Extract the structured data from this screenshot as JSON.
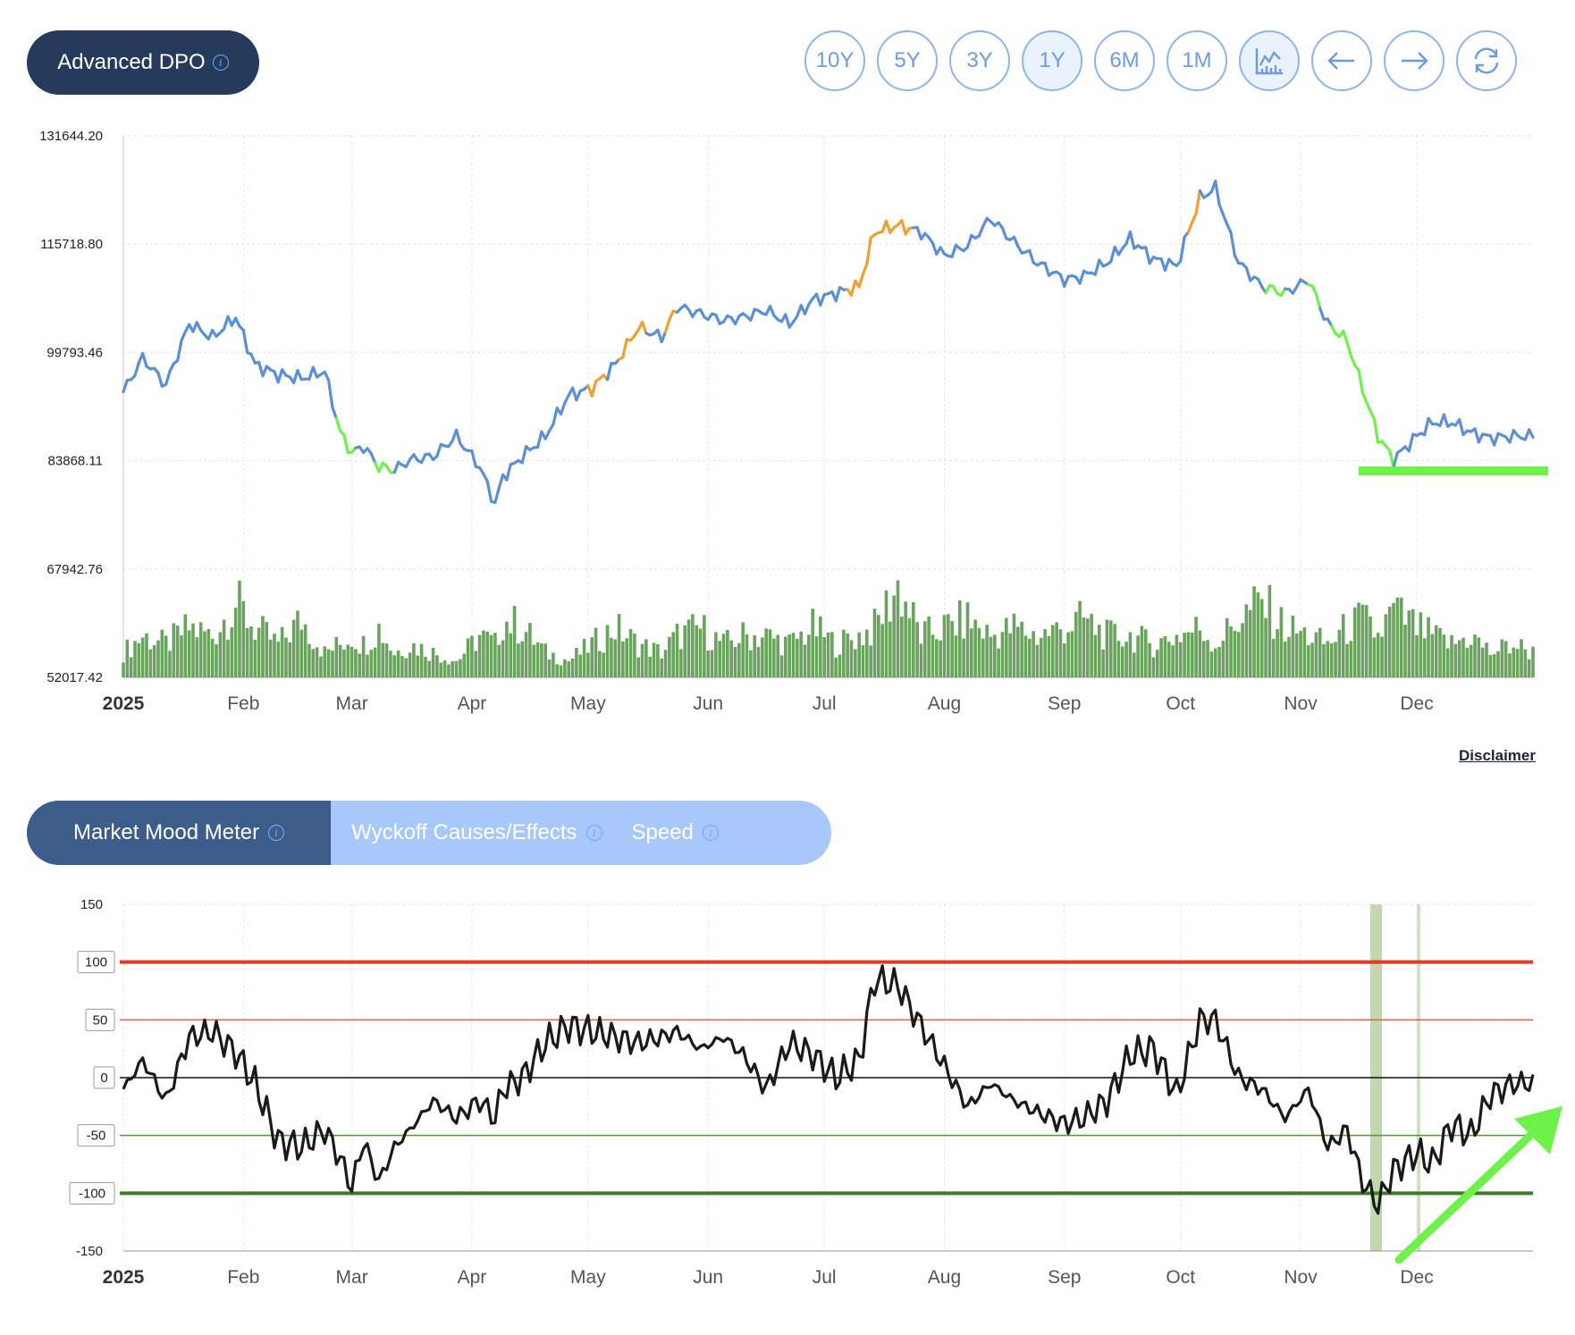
{
  "header": {
    "title": "Advanced DPO",
    "info_icon": "info-icon"
  },
  "toolbar": {
    "ranges": [
      "10Y",
      "5Y",
      "3Y",
      "1Y",
      "6M",
      "1M"
    ],
    "active_range": "1Y",
    "icons": [
      "chart-type-icon",
      "arrow-left-icon",
      "arrow-right-icon",
      "refresh-icon"
    ]
  },
  "disclaimer": "Disclaimer",
  "tabs": [
    {
      "label": "Market Mood Meter",
      "active": true
    },
    {
      "label": "Wyckoff Causes/Effects",
      "active": false
    },
    {
      "label": "Speed",
      "active": false
    }
  ],
  "colors": {
    "price_line": "#5b8fd8",
    "price_overbought": "#f0a030",
    "price_oversold": "#6ef24a",
    "volume_bars": "#6aa35e",
    "mood_line": "#1a1a1a",
    "level_100": "#e03a2b",
    "level_50": "#e05c50",
    "level_neg50": "#4f9a35",
    "level_neg100": "#3e7a2a",
    "highlight_band": "#b9d3a6",
    "arrow": "#6ef24a"
  },
  "chart_data": [
    {
      "type": "line",
      "name": "price",
      "y_ticks": [
        "131644.20",
        "115718.80",
        "99793.46",
        "83868.11",
        "67942.76",
        "52017.42"
      ],
      "ylim": [
        52017.42,
        131644.2
      ],
      "x_ticks": [
        "2025",
        "Feb",
        "Mar",
        "Apr",
        "May",
        "Jun",
        "Jul",
        "Aug",
        "Sep",
        "Oct",
        "Nov",
        "Dec"
      ],
      "x": [
        "2025-01-01",
        "2025-01-06",
        "2025-01-12",
        "2025-01-18",
        "2025-01-24",
        "2025-01-30",
        "2025-02-04",
        "2025-02-10",
        "2025-02-16",
        "2025-02-22",
        "2025-02-26",
        "2025-03-01",
        "2025-03-04",
        "2025-03-08",
        "2025-03-12",
        "2025-03-16",
        "2025-03-22",
        "2025-03-28",
        "2025-04-03",
        "2025-04-07",
        "2025-04-09",
        "2025-04-14",
        "2025-04-20",
        "2025-04-26",
        "2025-05-02",
        "2025-05-08",
        "2025-05-14",
        "2025-05-20",
        "2025-05-24",
        "2025-05-30",
        "2025-06-05",
        "2025-06-10",
        "2025-06-16",
        "2025-06-22",
        "2025-06-28",
        "2025-07-04",
        "2025-07-10",
        "2025-07-14",
        "2025-07-20",
        "2025-07-26",
        "2025-08-01",
        "2025-08-07",
        "2025-08-13",
        "2025-08-19",
        "2025-08-25",
        "2025-09-01",
        "2025-09-06",
        "2025-09-12",
        "2025-09-18",
        "2025-09-24",
        "2025-09-30",
        "2025-10-06",
        "2025-10-10",
        "2025-10-16",
        "2025-10-22",
        "2025-10-28",
        "2025-11-03",
        "2025-11-08",
        "2025-11-13",
        "2025-11-17",
        "2025-11-21",
        "2025-11-25",
        "2025-12-01",
        "2025-12-05",
        "2025-12-10",
        "2025-12-15",
        "2025-12-20",
        "2025-12-26",
        "2025-12-31"
      ],
      "y": [
        94000,
        99000,
        95000,
        104000,
        102000,
        105000,
        98000,
        96500,
        96000,
        97000,
        88000,
        85000,
        86000,
        83000,
        82500,
        84000,
        84500,
        87500,
        83000,
        77500,
        81500,
        84500,
        87500,
        93500,
        94500,
        98000,
        103500,
        102000,
        106500,
        105500,
        104500,
        105000,
        106000,
        104000,
        107500,
        108500,
        109500,
        117500,
        118500,
        117500,
        114000,
        115500,
        119500,
        116000,
        113000,
        110500,
        111000,
        113000,
        116500,
        113500,
        112500,
        122500,
        124000,
        113000,
        109500,
        108500,
        110500,
        104000,
        101500,
        94500,
        87500,
        84000,
        87500,
        89500,
        89500,
        88000,
        87200,
        87500,
        87500
      ],
      "segments_color": {
        "orange": [
          [
            "2025-05-02",
            "2025-05-06"
          ],
          [
            "2025-05-10",
            "2025-05-16"
          ],
          [
            "2025-05-22",
            "2025-05-24"
          ],
          [
            "2025-07-08",
            "2025-07-24"
          ],
          [
            "2025-10-04",
            "2025-10-06"
          ]
        ],
        "green": [
          [
            "2025-02-26",
            "2025-03-02"
          ],
          [
            "2025-03-08",
            "2025-03-12"
          ],
          [
            "2025-10-24",
            "2025-10-28"
          ],
          [
            "2025-11-04",
            "2025-11-06"
          ],
          [
            "2025-11-10",
            "2025-11-25"
          ]
        ]
      },
      "volume": [
        3,
        5,
        4,
        6,
        5,
        9,
        6,
        4,
        7,
        3,
        4,
        5,
        4,
        6,
        3,
        4,
        3,
        2,
        5,
        4,
        7,
        6,
        3,
        2,
        4,
        6,
        4,
        3,
        5,
        6,
        4,
        5,
        5,
        4,
        6,
        4,
        5,
        6,
        11,
        5,
        6,
        7,
        5,
        6,
        5,
        6,
        7,
        5,
        5,
        4,
        5,
        6,
        4,
        7,
        9,
        6,
        5,
        4,
        6,
        7,
        5,
        8,
        6,
        5,
        4,
        5,
        3,
        4,
        3
      ]
    },
    {
      "type": "line",
      "name": "mood",
      "y_ticks": [
        150,
        100,
        50,
        0,
        -50,
        -100,
        -150
      ],
      "ylim": [
        -150,
        150
      ],
      "levels": [
        100,
        50,
        0,
        -50,
        -100
      ],
      "x_ticks": [
        "2025",
        "Feb",
        "Mar",
        "Apr",
        "May",
        "Jun",
        "Jul",
        "Aug",
        "Sep",
        "Oct",
        "Nov",
        "Dec"
      ],
      "x": [
        "2025-01-01",
        "2025-01-06",
        "2025-01-12",
        "2025-01-18",
        "2025-01-24",
        "2025-01-30",
        "2025-02-04",
        "2025-02-10",
        "2025-02-16",
        "2025-02-22",
        "2025-02-26",
        "2025-03-01",
        "2025-03-04",
        "2025-03-08",
        "2025-03-12",
        "2025-03-16",
        "2025-03-22",
        "2025-03-28",
        "2025-04-03",
        "2025-04-07",
        "2025-04-09",
        "2025-04-14",
        "2025-04-20",
        "2025-04-26",
        "2025-05-02",
        "2025-05-08",
        "2025-05-14",
        "2025-05-20",
        "2025-05-24",
        "2025-05-30",
        "2025-06-05",
        "2025-06-10",
        "2025-06-16",
        "2025-06-22",
        "2025-06-28",
        "2025-07-04",
        "2025-07-10",
        "2025-07-14",
        "2025-07-20",
        "2025-07-26",
        "2025-08-01",
        "2025-08-07",
        "2025-08-13",
        "2025-08-19",
        "2025-08-25",
        "2025-09-01",
        "2025-09-06",
        "2025-09-12",
        "2025-09-18",
        "2025-09-24",
        "2025-09-30",
        "2025-10-06",
        "2025-10-10",
        "2025-10-16",
        "2025-10-22",
        "2025-10-28",
        "2025-11-03",
        "2025-11-08",
        "2025-11-13",
        "2025-11-17",
        "2025-11-21",
        "2025-11-25",
        "2025-12-01",
        "2025-12-05",
        "2025-12-10",
        "2025-12-15",
        "2025-12-20",
        "2025-12-26",
        "2025-12-31"
      ],
      "y": [
        -10,
        15,
        -20,
        35,
        40,
        22,
        -5,
        -55,
        -60,
        -45,
        -70,
        -95,
        -55,
        -90,
        -60,
        -45,
        -20,
        -35,
        -20,
        -35,
        -10,
        0,
        30,
        45,
        40,
        35,
        30,
        35,
        40,
        25,
        35,
        20,
        -10,
        30,
        20,
        0,
        15,
        85,
        80,
        45,
        10,
        -25,
        -5,
        -20,
        -30,
        -40,
        -35,
        -20,
        20,
        25,
        -15,
        50,
        50,
        0,
        -10,
        -35,
        -10,
        -60,
        -45,
        -90,
        -110,
        -80,
        -65,
        -75,
        -40,
        -50,
        -15,
        -5,
        -5
      ],
      "highlight_bands": [
        [
          "2025-11-19",
          "2025-11-22"
        ],
        [
          "2025-12-01",
          "2025-12-01"
        ]
      ]
    }
  ]
}
